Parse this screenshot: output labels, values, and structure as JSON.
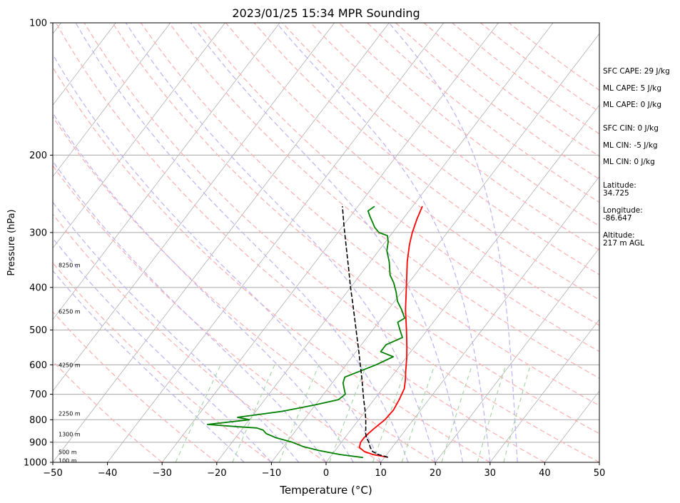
{
  "chart_data": {
    "type": "line",
    "title": "2023/01/25 15:34 MPR Sounding",
    "xlabel": "Temperature (°C)",
    "ylabel": "Pressure (hPa)",
    "xlim": [
      -50,
      50
    ],
    "ylim": [
      1000,
      100
    ],
    "y_scale": "log",
    "grid": true,
    "x_ticks": [
      -50,
      -40,
      -30,
      -20,
      -10,
      0,
      10,
      20,
      30,
      40,
      50
    ],
    "y_ticks": [
      100,
      200,
      300,
      400,
      500,
      600,
      700,
      800,
      900,
      1000
    ],
    "series": [
      {
        "color": "#ff0000",
        "points": [
          [
            973,
            10.5
          ],
          [
            960,
            7.5
          ],
          [
            945,
            5.5
          ],
          [
            925,
            4.0
          ],
          [
            900,
            3.5
          ],
          [
            880,
            3.5
          ],
          [
            860,
            3.7
          ],
          [
            840,
            4.0
          ],
          [
            800,
            4.8
          ],
          [
            760,
            5.0
          ],
          [
            720,
            4.6
          ],
          [
            680,
            4.0
          ],
          [
            650,
            3.0
          ],
          [
            620,
            1.8
          ],
          [
            580,
            0.2
          ],
          [
            550,
            -1.2
          ],
          [
            500,
            -3.8
          ],
          [
            450,
            -6.8
          ],
          [
            400,
            -9.8
          ],
          [
            350,
            -13.2
          ],
          [
            320,
            -15.2
          ],
          [
            300,
            -16.4
          ],
          [
            280,
            -17.4
          ],
          [
            262,
            -18.2
          ]
        ]
      },
      {
        "color": "#008000",
        "points": [
          [
            975,
            6.0
          ],
          [
            960,
            1.5
          ],
          [
            940,
            -3.0
          ],
          [
            920,
            -6.5
          ],
          [
            900,
            -9.0
          ],
          [
            880,
            -12.5
          ],
          [
            860,
            -15.0
          ],
          [
            845,
            -16.0
          ],
          [
            835,
            -17.5
          ],
          [
            830,
            -21.0
          ],
          [
            820,
            -27.0
          ],
          [
            800,
            -20.0
          ],
          [
            790,
            -22.5
          ],
          [
            780,
            -19.5
          ],
          [
            765,
            -15.0
          ],
          [
            740,
            -10.0
          ],
          [
            720,
            -6.5
          ],
          [
            700,
            -6.0
          ],
          [
            680,
            -7.0
          ],
          [
            660,
            -8.0
          ],
          [
            640,
            -8.5
          ],
          [
            600,
            -4.5
          ],
          [
            575,
            -2.5
          ],
          [
            560,
            -5.5
          ],
          [
            540,
            -5.5
          ],
          [
            520,
            -3.5
          ],
          [
            500,
            -5.0
          ],
          [
            480,
            -6.5
          ],
          [
            470,
            -5.8
          ],
          [
            450,
            -7.5
          ],
          [
            430,
            -9.5
          ],
          [
            410,
            -11.0
          ],
          [
            390,
            -12.8
          ],
          [
            375,
            -14.5
          ],
          [
            350,
            -16.5
          ],
          [
            330,
            -18.5
          ],
          [
            315,
            -19.5
          ],
          [
            305,
            -20.5
          ],
          [
            300,
            -22.5
          ],
          [
            292,
            -24.0
          ],
          [
            285,
            -25.0
          ],
          [
            275,
            -26.5
          ],
          [
            268,
            -27.5
          ],
          [
            262,
            -27.0
          ]
        ]
      },
      {
        "color": "#000000",
        "dash": "5,4",
        "points": [
          [
            973,
            10.5
          ],
          [
            960,
            8.5
          ],
          [
            945,
            7.0
          ],
          [
            925,
            6.0
          ],
          [
            900,
            5.0
          ],
          [
            880,
            4.0
          ],
          [
            860,
            3.2
          ],
          [
            840,
            2.6
          ],
          [
            800,
            1.3
          ],
          [
            760,
            -0.2
          ],
          [
            720,
            -1.9
          ],
          [
            680,
            -3.6
          ],
          [
            640,
            -5.4
          ],
          [
            600,
            -7.4
          ],
          [
            560,
            -9.5
          ],
          [
            520,
            -11.8
          ],
          [
            480,
            -14.3
          ],
          [
            440,
            -17.0
          ],
          [
            400,
            -20.0
          ],
          [
            360,
            -23.2
          ],
          [
            320,
            -26.8
          ],
          [
            290,
            -29.8
          ],
          [
            262,
            -32.8
          ]
        ]
      }
    ],
    "height_labels": [
      {
        "p": 356,
        "text": "8250 m"
      },
      {
        "p": 454,
        "text": "6250 m"
      },
      {
        "p": 600,
        "text": "4250 m"
      },
      {
        "p": 774,
        "text": "2250 m"
      },
      {
        "p": 862,
        "text": "1300 m"
      },
      {
        "p": 947,
        "text": "500 m"
      },
      {
        "p": 990,
        "text": "100 m"
      }
    ],
    "annotations": [
      "SFC CAPE: 29 J/kg",
      "ML CAPE: 5 J/kg",
      "ML CAPE: 0 J/kg",
      "SFC CIN: 0 J/kg",
      "ML CIN: -5 J/kg",
      "ML CIN: 0 J/kg",
      "Latitude:\n34.725",
      "Longitude:\n-86.647",
      "Altitude:\n217 m AGL"
    ],
    "colors": {
      "isotherm": "#b0b0b0",
      "isobar": "#a8a8a8",
      "dry_adiabat": "#ffb3b3",
      "moist_adiabat": "#c0b8f5",
      "mixing_ratio": "#a8d8a8"
    }
  }
}
